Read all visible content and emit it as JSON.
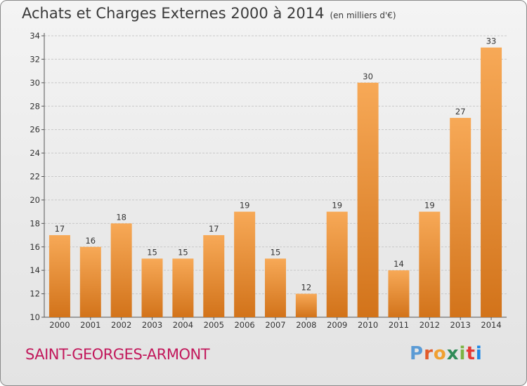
{
  "header": {
    "title": "Achats et Charges Externes 2000 à 2014",
    "subtitle": "(en milliers d'€)"
  },
  "footer": {
    "commune": "SAINT-GEORGES-ARMONT",
    "logo_text": "Proxiti"
  },
  "colors": {
    "bar_top": "#f7a957",
    "bar_bottom": "#d2731a",
    "commune_text": "#c2185b",
    "logo_letters": [
      "#5b9bd5",
      "#e25b2a",
      "#f0a030",
      "#2e8b57",
      "#7cb342",
      "#e53935",
      "#1e88e5"
    ]
  },
  "chart_data": {
    "type": "bar",
    "title": "Achats et Charges Externes 2000 à 2014",
    "subtitle": "(en milliers d'€)",
    "categories": [
      "2000",
      "2001",
      "2002",
      "2003",
      "2004",
      "2005",
      "2006",
      "2007",
      "2008",
      "2009",
      "2010",
      "2011",
      "2012",
      "2013",
      "2014"
    ],
    "values": [
      17,
      16,
      18,
      15,
      15,
      17,
      19,
      15,
      12,
      19,
      30,
      14,
      19,
      27,
      33
    ],
    "ylim": [
      10,
      34
    ],
    "yticks": [
      10,
      12,
      14,
      16,
      18,
      20,
      22,
      24,
      26,
      28,
      30,
      32,
      34
    ],
    "grid": true,
    "data_labels": true
  }
}
